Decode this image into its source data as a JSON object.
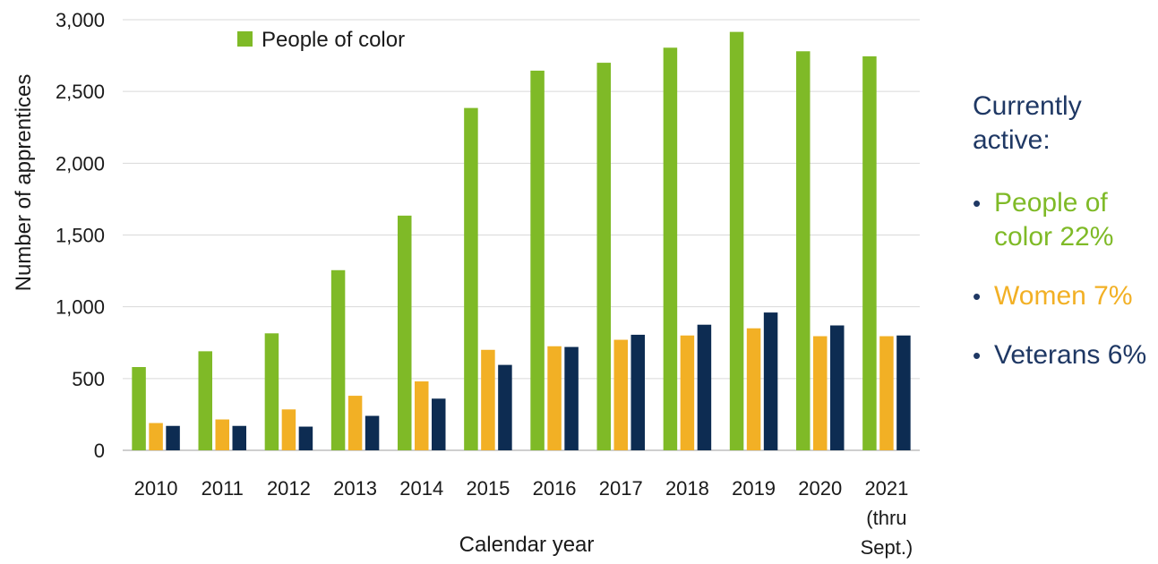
{
  "chart_data": {
    "type": "bar",
    "categories": [
      "2010",
      "2011",
      "2012",
      "2013",
      "2014",
      "2015",
      "2016",
      "2017",
      "2018",
      "2019",
      "2020",
      "2021"
    ],
    "category_sublabels": [
      "",
      "",
      "",
      "",
      "",
      "",
      "",
      "",
      "",
      "",
      "",
      "(thru Sept.)"
    ],
    "series": [
      {
        "name": "People of color",
        "color": "#7fba27",
        "values": [
          580,
          690,
          815,
          1255,
          1635,
          2385,
          2645,
          2700,
          2805,
          2915,
          2780,
          2745
        ]
      },
      {
        "color": "#f2b025",
        "values": [
          190,
          215,
          285,
          380,
          480,
          700,
          725,
          770,
          800,
          850,
          795,
          795
        ]
      },
      {
        "color": "#0d2c52",
        "values": [
          170,
          170,
          165,
          240,
          360,
          595,
          720,
          805,
          875,
          960,
          870,
          800
        ]
      }
    ],
    "xlabel": "Calendar year",
    "ylabel": "Number of apprentices",
    "ylim": [
      0,
      3000
    ],
    "yticks": [
      0,
      500,
      1000,
      1500,
      2000,
      2500,
      3000
    ],
    "ytick_labels": [
      "0",
      "500",
      "1,000",
      "1,500",
      "2,000",
      "2,500",
      "3,000"
    ],
    "grid": true,
    "legend_position": "top-left"
  },
  "side_panel": {
    "heading": "Currently active:",
    "items": [
      {
        "text": "People of color 22%",
        "color": "#7fba27"
      },
      {
        "text": "Women 7%",
        "color": "#f2b025"
      },
      {
        "text": "Veterans 6%",
        "color": "#1f3864"
      }
    ]
  }
}
